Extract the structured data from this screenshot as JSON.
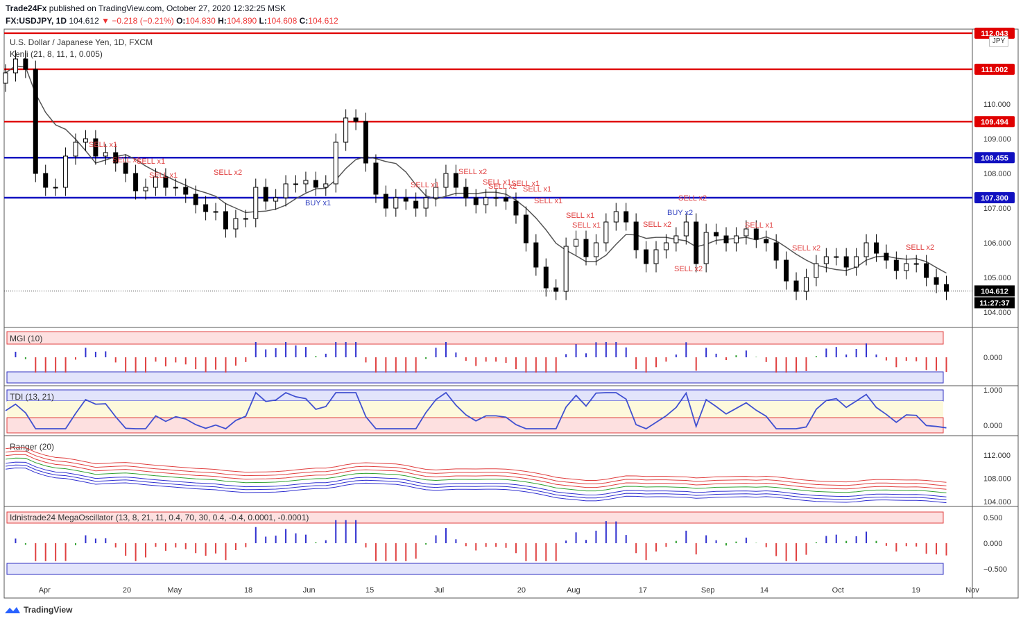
{
  "header": {
    "publisher": "Trade24Fx",
    "published_text": "published on TradingView.com, October 27, 2020 12:32:25 MSK",
    "symbol": "FX:USDJPY, 1D",
    "last": "104.612",
    "change": "▼ −0.218 (−0.21%)",
    "o_label": "O:",
    "o": "104.830",
    "h_label": "H:",
    "h": "104.890",
    "l_label": "L:",
    "l": "104.608",
    "c_label": "C:",
    "c": "104.612"
  },
  "main_pane": {
    "title": "U.S. Dollar / Japanese Yen, 1D, FXCM",
    "indicator": "Kenji (21, 8, 11, 1, 0.005)",
    "currency_tag": "JPY",
    "y_ticks": [
      "110.000",
      "109.000",
      "108.000",
      "107.000",
      "106.000",
      "105.000",
      "104.000"
    ],
    "levels": [
      {
        "label": "112.043",
        "color": "#e00000"
      },
      {
        "label": "111.002",
        "color": "#e00000"
      },
      {
        "label": "109.494",
        "color": "#e00000"
      },
      {
        "label": "108.455",
        "color": "#1010c0"
      },
      {
        "label": "107.300",
        "color": "#1010c0"
      }
    ],
    "last_price_tag": "104.612",
    "countdown_tag": "11:27:37",
    "signals": [
      "SELL x1",
      "SELL x1",
      "SELL x1",
      "SELL x1",
      "SELL x2",
      "BUY x1",
      "SELL x1",
      "SELL x2",
      "SELL x1",
      "SELL x2",
      "SELL x1",
      "SELL x1",
      "SELL x1",
      "SELL x1",
      "SELL x1",
      "SELL x2",
      "BUY x2",
      "SELL x2",
      "SELL x2",
      "SELL x1",
      "SELL x2",
      "SELL x2"
    ]
  },
  "panes": {
    "mgi": {
      "title": "MGI (10)",
      "ticks": [
        "0.000"
      ]
    },
    "tdi": {
      "title": "TDI (13, 21)",
      "ticks": [
        "1.000",
        "0.000"
      ]
    },
    "ranger": {
      "title": "Ranger (20)",
      "ticks": [
        "112.000",
        "108.000",
        "104.000"
      ]
    },
    "mega": {
      "title": "Idnistrade24 MegaOscillator (13, 8, 21, 11, 0.4, 70, 30, 0.4, -0.4, 0.0001, -0.0001)",
      "ticks": [
        "0.500",
        "0.000",
        "−0.500"
      ]
    }
  },
  "x_axis": [
    "Apr",
    "20",
    "May",
    "18",
    "Jun",
    "15",
    "Jul",
    "20",
    "Aug",
    "17",
    "Sep",
    "14",
    "Oct",
    "19",
    "Nov"
  ],
  "footer": {
    "brand": "TradingView"
  },
  "colors": {
    "bull": "#ffffff",
    "bear": "#000000",
    "up_bar": "#3030d0",
    "down_bar": "#e04040",
    "neutral_bar": "#30a030",
    "sell": "#e04040",
    "buy": "#3040c0"
  },
  "chart_data": {
    "type": "candlestick",
    "title": "U.S. Dollar / Japanese Yen, 1D, FXCM",
    "y_range": [
      103.9,
      112.3
    ],
    "x_range": [
      "2020-03-23",
      "2020-11-01"
    ],
    "levels": [
      112.043,
      111.002,
      109.494,
      108.455,
      107.3
    ],
    "last_price": 104.612,
    "close_approx": [
      110.9,
      111.3,
      111.0,
      108.0,
      107.6,
      107.6,
      108.5,
      108.9,
      109.0,
      108.5,
      108.6,
      108.3,
      108.0,
      107.5,
      107.6,
      107.9,
      107.6,
      107.6,
      107.4,
      107.1,
      106.9,
      106.9,
      106.4,
      106.7,
      106.7,
      107.6,
      107.2,
      107.3,
      107.7,
      107.7,
      107.8,
      107.6,
      107.7,
      108.9,
      109.6,
      109.5,
      108.3,
      107.4,
      107.0,
      107.3,
      107.2,
      107.0,
      107.3,
      107.6,
      108.0,
      107.6,
      107.3,
      107.1,
      107.3,
      107.3,
      107.2,
      106.8,
      106.0,
      105.3,
      104.7,
      104.6,
      105.9,
      106.1,
      105.6,
      106.0,
      106.6,
      106.9,
      106.6,
      105.8,
      105.4,
      105.8,
      106.0,
      106.2,
      106.6,
      105.4,
      106.3,
      106.2,
      106.0,
      106.2,
      106.4,
      106.1,
      106.0,
      105.5,
      104.9,
      104.6,
      105.0,
      105.4,
      105.6,
      105.6,
      105.3,
      105.6,
      106.0,
      105.7,
      105.5,
      105.2,
      105.4,
      105.4,
      105.0,
      104.8,
      104.6
    ]
  }
}
